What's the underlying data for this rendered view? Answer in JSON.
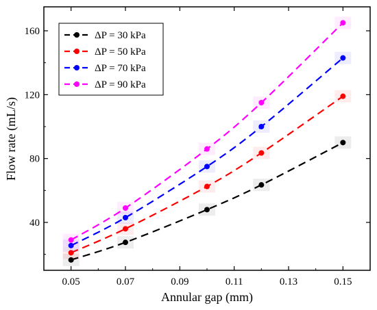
{
  "chart_data": {
    "type": "line",
    "xlabel": "Annular gap (mm)",
    "ylabel": "Flow rate (mL/s)",
    "xlim": [
      0.04,
      0.16
    ],
    "ylim": [
      10,
      175
    ],
    "x_ticks": [
      "0.05",
      "0.07",
      "0.09",
      "0.11",
      "0.13",
      "0.15"
    ],
    "y_ticks": [
      "40",
      "80",
      "120",
      "160"
    ],
    "x": [
      0.05,
      0.07,
      0.1,
      0.12,
      0.15
    ],
    "legend_position": "top-left",
    "grid": false,
    "series": [
      {
        "name": "ΔP = 30 kPa",
        "color": "#000000",
        "values": [
          16.5,
          27.5,
          48,
          63.5,
          90
        ]
      },
      {
        "name": "ΔP = 50 kPa",
        "color": "#ff0000",
        "values": [
          21,
          36,
          62.5,
          83.5,
          119
        ]
      },
      {
        "name": "ΔP = 70 kPa",
        "color": "#0000ff",
        "values": [
          25.5,
          43,
          75,
          100,
          143
        ]
      },
      {
        "name": "ΔP = 90 kPa",
        "color": "#ff00ff",
        "values": [
          29,
          49,
          86,
          115,
          165
        ]
      }
    ]
  }
}
